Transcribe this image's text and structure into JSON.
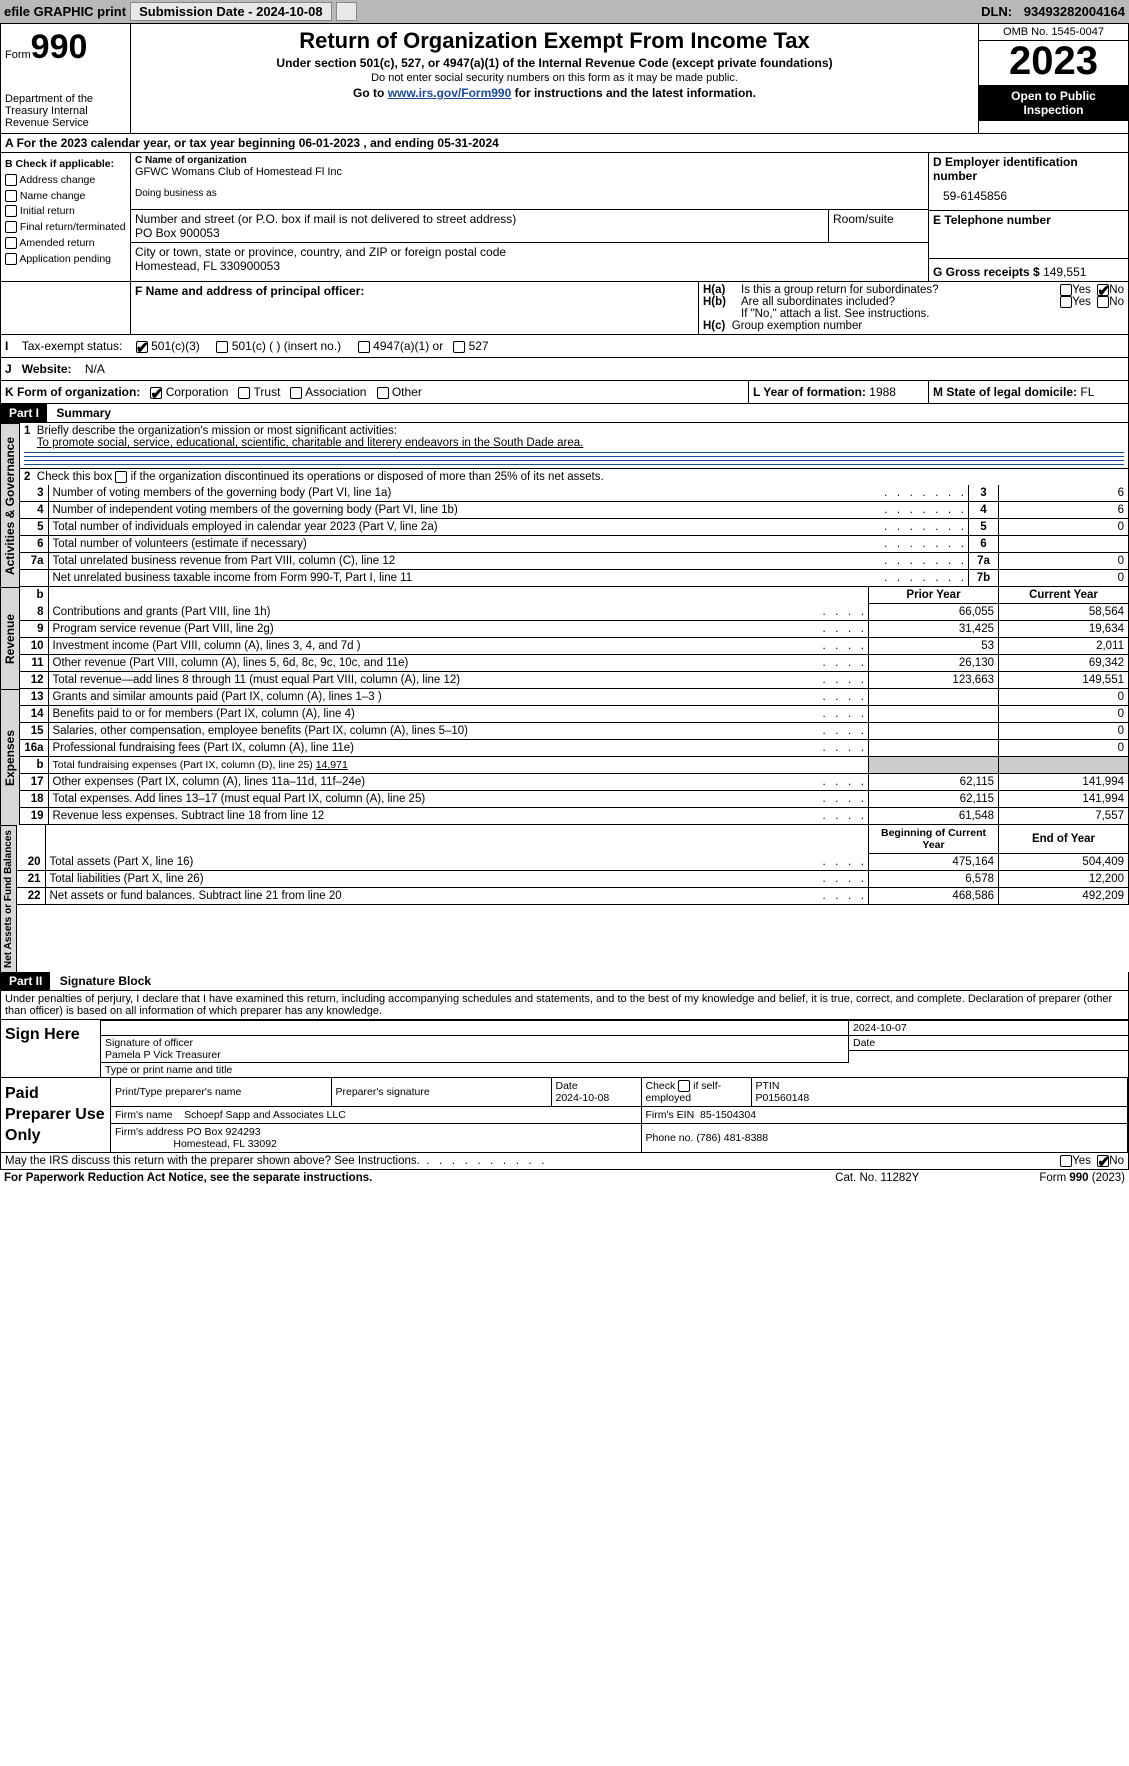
{
  "topbar": {
    "efile": "efile GRAPHIC print",
    "submission": "Submission Date - 2024-10-08",
    "dln_label": "DLN:",
    "dln": "93493282004164"
  },
  "header": {
    "form_word": "Form",
    "form_no": "990",
    "dept": "Department of the Treasury Internal Revenue Service",
    "title": "Return of Organization Exempt From Income Tax",
    "subtitle": "Under section 501(c), 527, or 4947(a)(1) of the Internal Revenue Code (except private foundations)",
    "note": "Do not enter social security numbers on this form as it may be made public.",
    "goto_pre": "Go to ",
    "goto_link": "www.irs.gov/Form990",
    "goto_post": " for instructions and the latest information.",
    "omb": "OMB No. 1545-0047",
    "year": "2023",
    "inspect": "Open to Public Inspection"
  },
  "period": "For the 2023 calendar year, or tax year beginning 06-01-2023    , and ending 05-31-2024",
  "sectionB": {
    "hdr": "B Check if applicable:",
    "opts": [
      "Address change",
      "Name change",
      "Initial return",
      "Final return/terminated",
      "Amended return",
      "Application pending"
    ],
    "c_lbl": "C Name of organization",
    "c_name": "GFWC Womans Club of Homestead Fl Inc",
    "dba_lbl": "Doing business as",
    "addr_lbl": "Number and street (or P.O. box if mail is not delivered to street address)",
    "room_lbl": "Room/suite",
    "addr": "PO Box 900053",
    "city_lbl": "City or town, state or province, country, and ZIP or foreign postal code",
    "city": "Homestead, FL  330900053",
    "d_lbl": "D Employer identification number",
    "d_val": "59-6145856",
    "e_lbl": "E Telephone number",
    "g_lbl": "G Gross receipts $",
    "g_val": "149,551"
  },
  "sectionF": {
    "f_lbl": "F  Name and address of principal officer:",
    "ha_lbl": "H(a)  Is this a group return for subordinates?",
    "hb_lbl": "H(b)  Are all subordinates included?",
    "hb_note": "If \"No,\" attach a list. See instructions.",
    "hc_lbl": "H(c)  Group exemption number",
    "yes": "Yes",
    "no": "No"
  },
  "sectionI": {
    "i_lbl": "Tax-exempt status:",
    "opts": [
      "501(c)(3)",
      "501(c) (  ) (insert no.)",
      "4947(a)(1) or",
      "527"
    ],
    "j_lbl": "Website:",
    "j_val": "N/A"
  },
  "sectionK": {
    "k_lbl": "K Form of organization:",
    "opts": [
      "Corporation",
      "Trust",
      "Association",
      "Other"
    ],
    "l_lbl": "L Year of formation:",
    "l_val": "1988",
    "m_lbl": "M State of legal domicile:",
    "m_val": "FL"
  },
  "part1": {
    "title": "Part I",
    "name": "Summary",
    "line1_lbl": "Briefly describe the organization's mission or most significant activities:",
    "line1_val": "To promote social, service, educational, scientific, charitable and literery endeavors in the South Dade area.",
    "line2_lbl": "Check this box ",
    "line2_post": " if the organization discontinued its operations or disposed of more than 25% of its net assets."
  },
  "governance_tab": "Activities & Governance",
  "revenue_tab": "Revenue",
  "expenses_tab": "Expenses",
  "netassets_tab": "Net Assets or Fund Balances",
  "lines_gov": [
    {
      "n": "3",
      "txt": "Number of voting members of the governing body (Part VI, line 1a)",
      "ln": "3",
      "v": "6"
    },
    {
      "n": "4",
      "txt": "Number of independent voting members of the governing body (Part VI, line 1b)",
      "ln": "4",
      "v": "6"
    },
    {
      "n": "5",
      "txt": "Total number of individuals employed in calendar year 2023 (Part V, line 2a)",
      "ln": "5",
      "v": "0"
    },
    {
      "n": "6",
      "txt": "Total number of volunteers (estimate if necessary)",
      "ln": "6",
      "v": ""
    },
    {
      "n": "7a",
      "txt": "Total unrelated business revenue from Part VIII, column (C), line 12",
      "ln": "7a",
      "v": "0"
    },
    {
      "n": "",
      "txt": "Net unrelated business taxable income from Form 990-T, Part I, line 11",
      "ln": "7b",
      "v": "0"
    }
  ],
  "col_hdrs": {
    "b": "b",
    "prior": "Prior Year",
    "current": "Current Year",
    "beg": "Beginning of Current Year",
    "end": "End of Year"
  },
  "lines_rev": [
    {
      "n": "8",
      "txt": "Contributions and grants (Part VIII, line 1h)",
      "p": "66,055",
      "c": "58,564"
    },
    {
      "n": "9",
      "txt": "Program service revenue (Part VIII, line 2g)",
      "p": "31,425",
      "c": "19,634"
    },
    {
      "n": "10",
      "txt": "Investment income (Part VIII, column (A), lines 3, 4, and 7d )",
      "p": "53",
      "c": "2,011"
    },
    {
      "n": "11",
      "txt": "Other revenue (Part VIII, column (A), lines 5, 6d, 8c, 9c, 10c, and 11e)",
      "p": "26,130",
      "c": "69,342"
    },
    {
      "n": "12",
      "txt": "Total revenue—add lines 8 through 11 (must equal Part VIII, column (A), line 12)",
      "p": "123,663",
      "c": "149,551"
    }
  ],
  "lines_exp": [
    {
      "n": "13",
      "txt": "Grants and similar amounts paid (Part IX, column (A), lines 1–3 )",
      "p": "",
      "c": "0"
    },
    {
      "n": "14",
      "txt": "Benefits paid to or for members (Part IX, column (A), line 4)",
      "p": "",
      "c": "0"
    },
    {
      "n": "15",
      "txt": "Salaries, other compensation, employee benefits (Part IX, column (A), lines 5–10)",
      "p": "",
      "c": "0"
    },
    {
      "n": "16a",
      "txt": "Professional fundraising fees (Part IX, column (A), line 11e)",
      "p": "",
      "c": "0"
    },
    {
      "n": "b",
      "txt": "Total fundraising expenses (Part IX, column (D), line 25) 14,971",
      "p": "shade",
      "c": "shade"
    },
    {
      "n": "17",
      "txt": "Other expenses (Part IX, column (A), lines 11a–11d, 11f–24e)",
      "p": "62,115",
      "c": "141,994"
    },
    {
      "n": "18",
      "txt": "Total expenses. Add lines 13–17 (must equal Part IX, column (A), line 25)",
      "p": "62,115",
      "c": "141,994"
    },
    {
      "n": "19",
      "txt": "Revenue less expenses. Subtract line 18 from line 12",
      "p": "61,548",
      "c": "7,557"
    }
  ],
  "lines_net": [
    {
      "n": "20",
      "txt": "Total assets (Part X, line 16)",
      "p": "475,164",
      "c": "504,409"
    },
    {
      "n": "21",
      "txt": "Total liabilities (Part X, line 26)",
      "p": "6,578",
      "c": "12,200"
    },
    {
      "n": "22",
      "txt": "Net assets or fund balances. Subtract line 21 from line 20",
      "p": "468,586",
      "c": "492,209"
    }
  ],
  "part2": {
    "title": "Part II",
    "name": "Signature Block",
    "decl": "Under penalties of perjury, I declare that I have examined this return, including accompanying schedules and statements, and to the best of my knowledge and belief, it is true, correct, and complete. Declaration of preparer (other than officer) is based on all information of which preparer has any knowledge."
  },
  "sign": {
    "here": "Sign Here",
    "sig_officer": "Signature of officer",
    "officer": "Pamela P Vick  Treasurer",
    "date_lbl": "Date",
    "date": "2024-10-07",
    "type_lbl": "Type or print name and title"
  },
  "paid": {
    "title": "Paid Preparer Use Only",
    "print_lbl": "Print/Type preparer's name",
    "prep_sig_lbl": "Preparer's signature",
    "date_lbl": "Date",
    "date": "2024-10-08",
    "check_lbl": "Check         if self-employed",
    "ptin_lbl": "PTIN",
    "ptin": "P01560148",
    "firm_name_lbl": "Firm's name",
    "firm_name": "Schoepf Sapp and Associates LLC",
    "firm_ein_lbl": "Firm's EIN",
    "firm_ein": "85-1504304",
    "firm_addr_lbl": "Firm's address",
    "firm_addr1": "PO Box 924293",
    "firm_addr2": "Homestead, FL  33092",
    "phone_lbl": "Phone no.",
    "phone": "(786) 481-8388"
  },
  "footer": {
    "discuss": "May the IRS discuss this return with the preparer shown above? See Instructions.",
    "paperwork": "For Paperwork Reduction Act Notice, see the separate instructions.",
    "cat": "Cat. No. 11282Y",
    "form": "Form 990 (2023)"
  },
  "colors": {
    "link": "#1a4b9b",
    "shade": "#cccccc",
    "tab_bg": "#d8d8d8"
  }
}
